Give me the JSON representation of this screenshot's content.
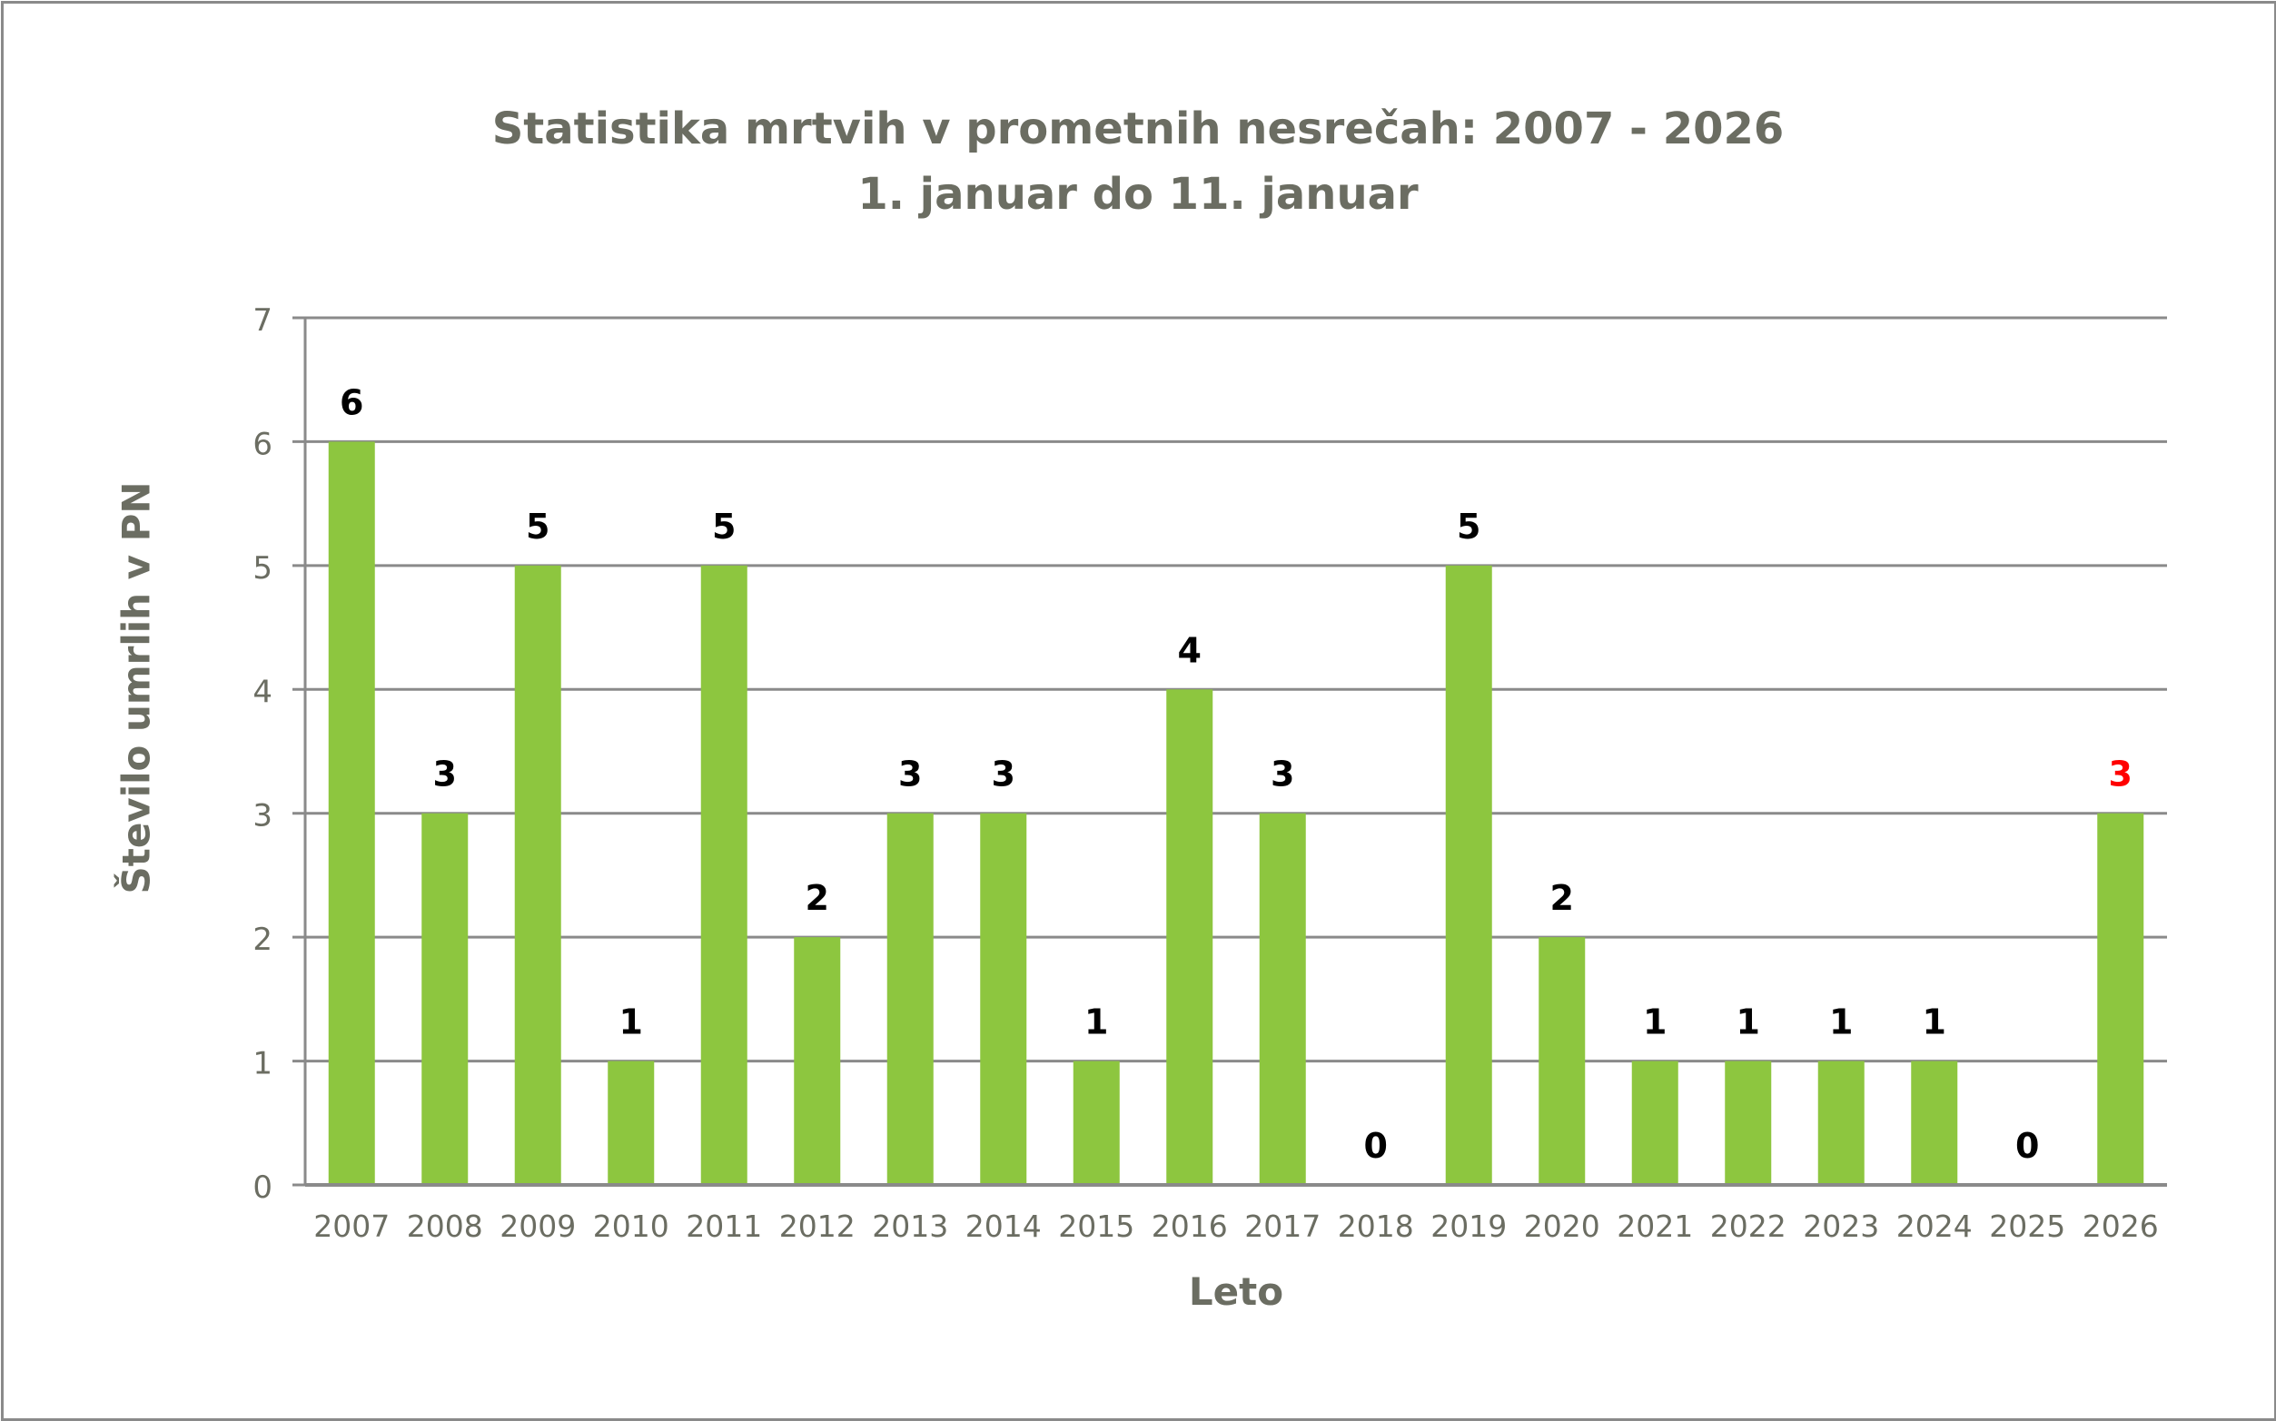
{
  "chart_data": {
    "type": "bar",
    "title": "Statistika mrtvih v prometnih nesrečah: 2007 - 2026",
    "subtitle": "1. januar do 11. januar",
    "xlabel": "Leto",
    "ylabel": "Število umrlih v PN",
    "categories": [
      "2007",
      "2008",
      "2009",
      "2010",
      "2011",
      "2012",
      "2013",
      "2014",
      "2015",
      "2016",
      "2017",
      "2018",
      "2019",
      "2020",
      "2021",
      "2022",
      "2023",
      "2024",
      "2025",
      "2026"
    ],
    "values": [
      6,
      3,
      5,
      1,
      5,
      2,
      3,
      3,
      1,
      4,
      3,
      0,
      5,
      2,
      1,
      1,
      1,
      1,
      0,
      3
    ],
    "ylim": [
      0,
      7
    ],
    "yticks": [
      0,
      1,
      2,
      3,
      4,
      5,
      6,
      7
    ],
    "grid": true,
    "data_labels": true,
    "colors": {
      "bar": "#8dc63f",
      "label": "#000000",
      "highlight_label": "#ff0000",
      "text": "#6b6d62",
      "grid": "#8a8a8a"
    },
    "highlighted_category": "2026"
  }
}
